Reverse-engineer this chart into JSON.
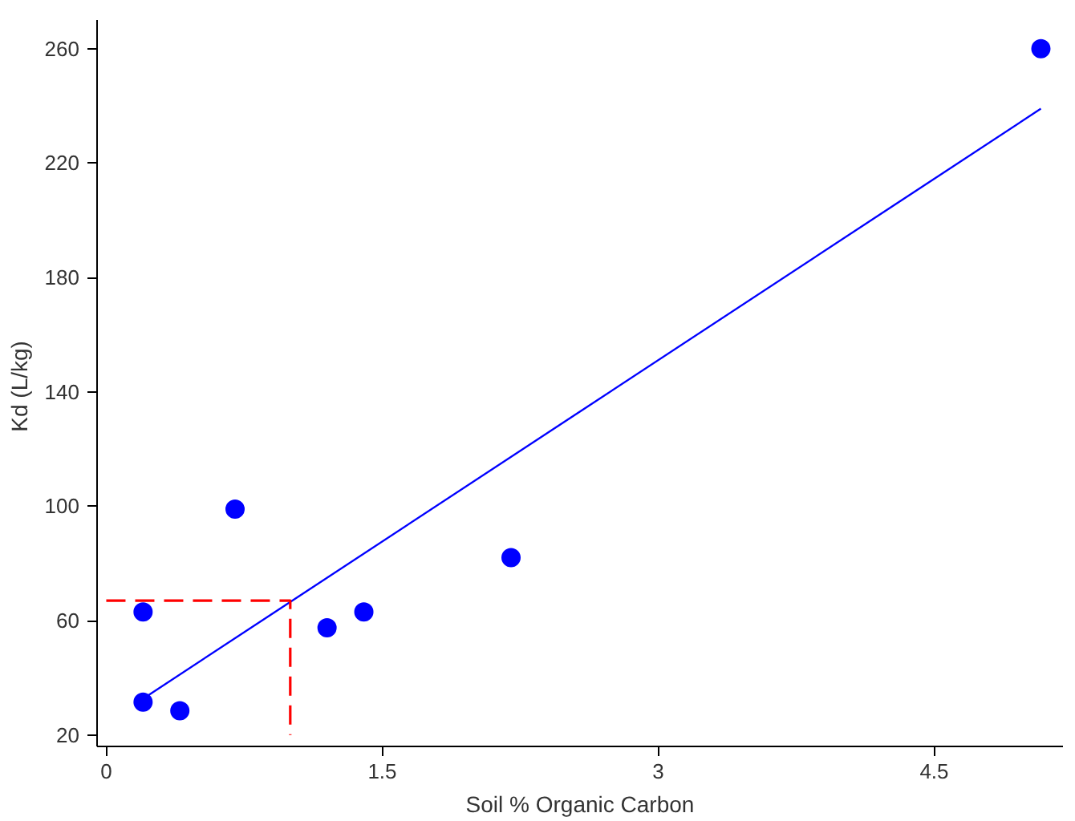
{
  "chart_data": {
    "type": "scatter",
    "xlabel": "Soil % Organic Carbon",
    "ylabel": "Kd  (L/kg)",
    "xlim": [
      -0.05,
      5.2
    ],
    "ylim": [
      16,
      270
    ],
    "xticks": [
      0,
      1.5,
      3,
      4.5
    ],
    "yticks": [
      20,
      60,
      100,
      140,
      180,
      220,
      260
    ],
    "grid": false,
    "marker": "circle",
    "series": [
      {
        "color": "#0000ff",
        "x": [
          0.2,
          0.2,
          0.4,
          0.7,
          1.2,
          1.4,
          2.2,
          5.08
        ],
        "values": [
          31.5,
          63,
          28.5,
          99,
          57.5,
          63,
          82,
          260
        ]
      },
      {
        "type": "line",
        "color": "#0000ff",
        "line_style": "solid",
        "marker": "none",
        "x": [
          0.2,
          5.08
        ],
        "values": [
          32.7,
          239
        ]
      },
      {
        "type": "line",
        "color": "#ff0000",
        "line_style": "dashed",
        "marker": "none",
        "x": [
          0,
          1,
          1
        ],
        "values": [
          67,
          67,
          20
        ]
      }
    ]
  }
}
